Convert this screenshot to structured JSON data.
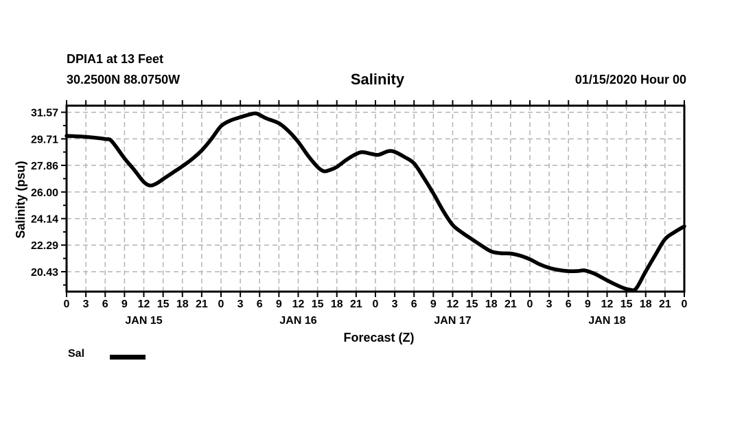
{
  "header": {
    "station_line1": "DPIA1 at 13 Feet",
    "station_line2": "30.2500N 88.0750W",
    "title": "Salinity",
    "datetime": "01/15/2020 Hour 00"
  },
  "colors": {
    "curve": "#000000",
    "grid": "#b3b3b3",
    "frame": "#000000",
    "text": "#000000",
    "background": "#ffffff"
  },
  "chart_data": {
    "type": "line",
    "title": "Salinity",
    "xlabel": "Forecast (Z)",
    "ylabel": "Salinity (psu)",
    "grid": "dashed",
    "legend_position": "bottom-left",
    "ylim": [
      19.04,
      32.03
    ],
    "y_ticks": [
      31.57,
      29.71,
      27.86,
      26.0,
      24.14,
      22.29,
      20.43
    ],
    "y_tick_labels": [
      "31.57",
      "29.71",
      "27.86",
      "26.00",
      "24.14",
      "22.29",
      "20.43"
    ],
    "y_minor_ticks": [
      30.64,
      28.79,
      26.93,
      25.07,
      23.21,
      21.36,
      19.5
    ],
    "x_hours_start": 0,
    "x_hours_end": 96,
    "x_tick_interval_hours": 3,
    "x_tick_labels": [
      "0",
      "3",
      "6",
      "9",
      "12",
      "15",
      "18",
      "21",
      "0",
      "3",
      "6",
      "9",
      "12",
      "15",
      "18",
      "21",
      "0",
      "3",
      "6",
      "9",
      "12",
      "15",
      "18",
      "21",
      "0",
      "3",
      "6",
      "9",
      "12",
      "15",
      "18",
      "21",
      "0"
    ],
    "day_labels": [
      {
        "label": "JAN 15",
        "hour": 12
      },
      {
        "label": "JAN 16",
        "hour": 36
      },
      {
        "label": "JAN 17",
        "hour": 60
      },
      {
        "label": "JAN 18",
        "hour": 84
      }
    ],
    "series": [
      {
        "name": "Sal",
        "color": "#000000",
        "x": [
          0,
          3,
          6,
          7,
          9,
          10.5,
          12,
          13,
          14,
          15,
          16.5,
          18,
          19.5,
          21,
          22.5,
          24,
          25.5,
          27,
          28.5,
          29.5,
          31,
          33,
          34.5,
          36,
          37.5,
          39,
          40,
          41,
          42,
          43.5,
          45,
          46,
          47.5,
          48.5,
          50,
          51,
          52.5,
          54,
          55.5,
          57,
          58.5,
          60,
          61.5,
          63,
          64.5,
          66,
          67.5,
          69,
          70.5,
          72,
          73.5,
          75,
          76.5,
          78,
          79.5,
          80.5,
          82,
          83.5,
          85,
          86.5,
          87.5,
          88.5,
          90,
          91.5,
          93,
          94.5,
          96
        ],
        "y": [
          29.92,
          29.85,
          29.7,
          29.55,
          28.35,
          27.55,
          26.7,
          26.45,
          26.6,
          26.9,
          27.35,
          27.8,
          28.3,
          28.9,
          29.7,
          30.6,
          31.0,
          31.22,
          31.42,
          31.48,
          31.15,
          30.8,
          30.25,
          29.5,
          28.55,
          27.75,
          27.45,
          27.55,
          27.75,
          28.25,
          28.65,
          28.78,
          28.65,
          28.6,
          28.85,
          28.8,
          28.45,
          28.0,
          27.0,
          25.9,
          24.7,
          23.7,
          23.15,
          22.7,
          22.25,
          21.85,
          21.72,
          21.7,
          21.55,
          21.3,
          20.95,
          20.7,
          20.55,
          20.47,
          20.48,
          20.52,
          20.3,
          19.95,
          19.6,
          19.3,
          19.18,
          19.25,
          20.45,
          21.6,
          22.7,
          23.2,
          23.6
        ]
      }
    ]
  }
}
